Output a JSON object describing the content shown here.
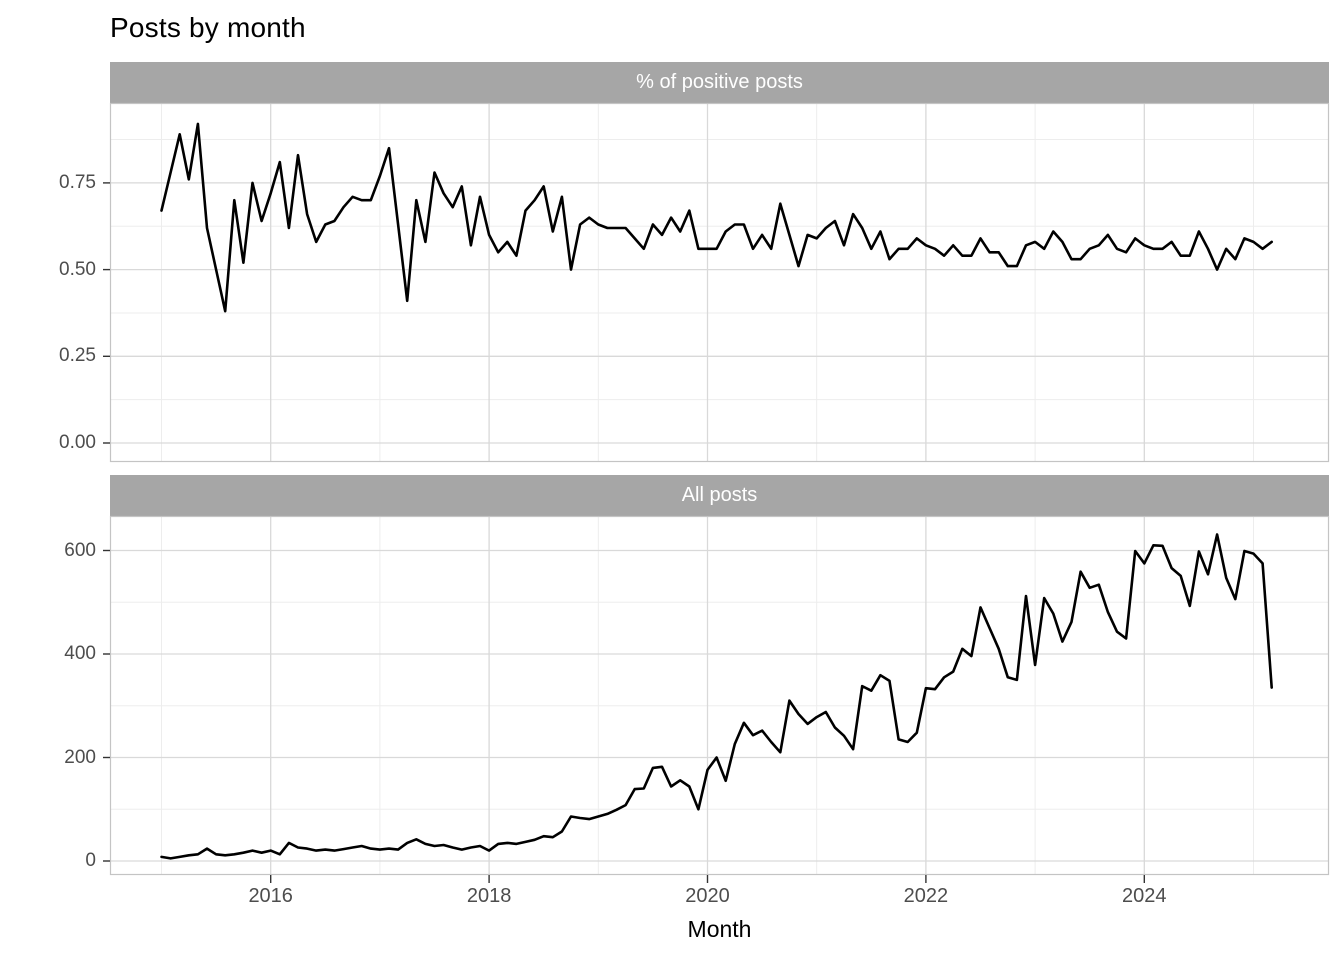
{
  "title": "Posts by month",
  "x_axis": {
    "title": "Month",
    "ticks": [
      {
        "label": "2016",
        "year": 2016
      },
      {
        "label": "2018",
        "year": 2018
      },
      {
        "label": "2020",
        "year": 2020
      },
      {
        "label": "2022",
        "year": 2022
      },
      {
        "label": "2024",
        "year": 2024
      }
    ],
    "minor_years": [
      2015,
      2017,
      2019,
      2021,
      2023,
      2025
    ]
  },
  "y_axes": [
    {
      "ticks": [
        {
          "label": "0.00",
          "value": 0
        },
        {
          "label": "0.25",
          "value": 0.25
        },
        {
          "label": "0.50",
          "value": 0.5
        },
        {
          "label": "0.75",
          "value": 0.75
        }
      ],
      "minor_values": [
        0.125,
        0.375,
        0.625,
        0.875
      ]
    },
    {
      "ticks": [
        {
          "label": "0",
          "value": 0
        },
        {
          "label": "200",
          "value": 200
        },
        {
          "label": "400",
          "value": 400
        },
        {
          "label": "600",
          "value": 600
        }
      ],
      "minor_values": [
        100,
        300,
        500
      ]
    }
  ],
  "colors": {
    "line": "#000000",
    "strip_bg": "#a6a6a6",
    "strip_text": "#ffffff",
    "grid_major": "#d9d9d9",
    "grid_minor": "#ededed",
    "panel_border": "#c4c4c4",
    "tick_mark": "#333333",
    "axis_text": "#4d4d4d",
    "background": "#ffffff"
  },
  "chart_data": [
    {
      "type": "line",
      "title": "% of positive posts",
      "xlabel": "Month",
      "x_start": "2015-01",
      "x_end": "2025-03",
      "frequency": "monthly",
      "x_range_years": [
        2015,
        2025.25
      ],
      "ylim": [
        0,
        0.98
      ],
      "grid": true,
      "legend": "none",
      "values": [
        0.67,
        0.78,
        0.89,
        0.76,
        0.92,
        0.62,
        0.5,
        0.38,
        0.7,
        0.52,
        0.75,
        0.64,
        0.72,
        0.81,
        0.62,
        0.83,
        0.66,
        0.58,
        0.63,
        0.64,
        0.68,
        0.71,
        0.7,
        0.7,
        0.77,
        0.85,
        0.63,
        0.41,
        0.7,
        0.58,
        0.78,
        0.72,
        0.68,
        0.74,
        0.57,
        0.71,
        0.6,
        0.55,
        0.58,
        0.54,
        0.67,
        0.7,
        0.74,
        0.61,
        0.71,
        0.5,
        0.63,
        0.65,
        0.63,
        0.62,
        0.62,
        0.62,
        0.59,
        0.56,
        0.63,
        0.6,
        0.65,
        0.61,
        0.67,
        0.56,
        0.56,
        0.56,
        0.61,
        0.63,
        0.63,
        0.56,
        0.6,
        0.56,
        0.69,
        0.6,
        0.51,
        0.6,
        0.59,
        0.62,
        0.64,
        0.57,
        0.66,
        0.62,
        0.56,
        0.61,
        0.53,
        0.56,
        0.56,
        0.59,
        0.57,
        0.56,
        0.54,
        0.57,
        0.54,
        0.54,
        0.59,
        0.55,
        0.55,
        0.51,
        0.51,
        0.57,
        0.58,
        0.56,
        0.61,
        0.58,
        0.53,
        0.53,
        0.56,
        0.57,
        0.6,
        0.56,
        0.55,
        0.59,
        0.57,
        0.56,
        0.56,
        0.58,
        0.54,
        0.54,
        0.61,
        0.56,
        0.5,
        0.56,
        0.53,
        0.59,
        0.58,
        0.56,
        0.58
      ]
    },
    {
      "type": "line",
      "title": "All posts",
      "xlabel": "Month",
      "x_start": "2015-01",
      "x_end": "2025-03",
      "frequency": "monthly",
      "x_range_years": [
        2015,
        2025.25
      ],
      "ylim": [
        0,
        670
      ],
      "grid": true,
      "legend": "none",
      "values": [
        8,
        5,
        8,
        11,
        13,
        24,
        13,
        11,
        13,
        16,
        20,
        16,
        20,
        13,
        35,
        26,
        24,
        20,
        22,
        20,
        23,
        26,
        29,
        24,
        22,
        24,
        22,
        35,
        42,
        33,
        29,
        31,
        26,
        22,
        26,
        29,
        20,
        33,
        35,
        33,
        37,
        41,
        48,
        46,
        57,
        86,
        83,
        81,
        86,
        91,
        99,
        108,
        139,
        140,
        180,
        182,
        144,
        156,
        144,
        100,
        176,
        200,
        155,
        226,
        267,
        243,
        252,
        230,
        210,
        310,
        284,
        265,
        278,
        288,
        258,
        242,
        216,
        338,
        329,
        359,
        348,
        235,
        230,
        248,
        334,
        332,
        355,
        366,
        410,
        396,
        490,
        450,
        410,
        355,
        350,
        512,
        379,
        508,
        478,
        424,
        462,
        559,
        528,
        534,
        481,
        443,
        430,
        599,
        575,
        610,
        609,
        566,
        551,
        493,
        598,
        554,
        631,
        547,
        506,
        599,
        594,
        575,
        335
      ]
    }
  ]
}
